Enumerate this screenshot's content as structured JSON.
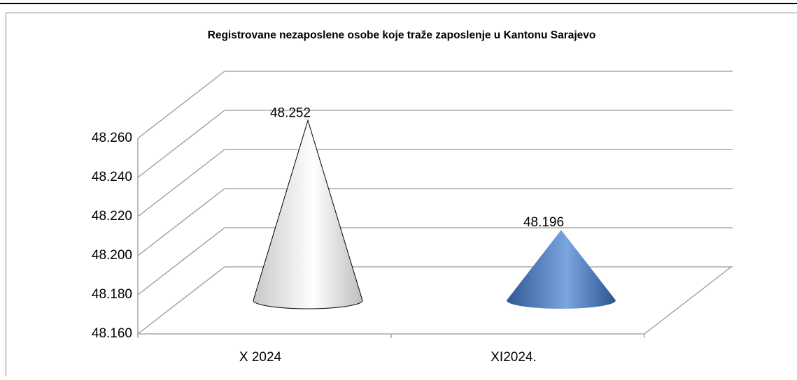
{
  "chart_data": {
    "type": "cone",
    "title": "Registrovane nezaposlene osobe koje traže zaposlenje u Kantonu Sarajevo",
    "categories": [
      "X 2024",
      "XI2024."
    ],
    "values": [
      48252,
      48196
    ],
    "value_labels": [
      "48.252",
      "48.196"
    ],
    "colors": [
      "#ffffff",
      "#4f81bd"
    ],
    "ylim": [
      48160,
      48260
    ],
    "yticks": [
      {
        "value": 48160,
        "label": "48.160"
      },
      {
        "value": 48180,
        "label": "48.180"
      },
      {
        "value": 48200,
        "label": "48.200"
      },
      {
        "value": 48220,
        "label": "48.220"
      },
      {
        "value": 48240,
        "label": "48.240"
      },
      {
        "value": 48260,
        "label": "48.260"
      }
    ],
    "grid": true
  }
}
